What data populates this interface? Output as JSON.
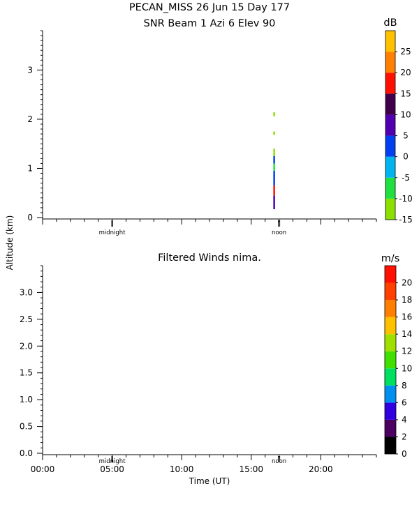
{
  "figure": {
    "title_line1": "PECAN_MISS  26 Jun 15 Day 177",
    "title_line2": "SNR Beam  1 Azi    6 Elev 90",
    "shared_ylabel": "Altitude (km)",
    "xlabel": "Time (UT)"
  },
  "chart_data": [
    {
      "type": "heatmap",
      "panel": "top",
      "title": "SNR Beam  1 Azi    6 Elev 90",
      "ylabel": "Altitude (km)",
      "ylim": [
        0,
        3.8
      ],
      "yticks": [
        0,
        1,
        2,
        3
      ],
      "xlim": [
        0,
        24
      ],
      "x_markers": [
        {
          "x": 5,
          "label": "midnight"
        },
        {
          "x": 17,
          "label": "noon"
        }
      ],
      "colorbar": {
        "unit": "dB",
        "min": -15,
        "max": 30,
        "ticks": [
          -15,
          -10,
          -5,
          0,
          5,
          10,
          15,
          20,
          25
        ],
        "colors": [
          "#8ce000",
          "#20e040",
          "#00b4f0",
          "#0040f0",
          "#5000b0",
          "#40004c",
          "#ff1000",
          "#ff8000",
          "#ffc000"
        ]
      },
      "data_cells": [
        {
          "time": 16.5,
          "alt_lo": 0.17,
          "alt_hi": 0.45,
          "db": 7
        },
        {
          "time": 16.5,
          "alt_lo": 0.45,
          "alt_hi": 0.65,
          "db": 17
        },
        {
          "time": 16.5,
          "alt_lo": 0.65,
          "alt_hi": 0.95,
          "db": 3
        },
        {
          "time": 16.5,
          "alt_lo": 0.95,
          "alt_hi": 1.1,
          "db": -6
        },
        {
          "time": 16.5,
          "alt_lo": 1.1,
          "alt_hi": 1.25,
          "db": 1
        },
        {
          "time": 16.5,
          "alt_lo": 1.25,
          "alt_hi": 1.4,
          "db": -12
        },
        {
          "time": 16.5,
          "alt_lo": 1.68,
          "alt_hi": 1.75,
          "db": -12
        },
        {
          "time": 16.5,
          "alt_lo": 2.06,
          "alt_hi": 2.14,
          "db": -13
        }
      ]
    },
    {
      "type": "heatmap",
      "panel": "bottom",
      "title": "Filtered Winds nima.",
      "ylabel": "Altitude (km)",
      "ylim": [
        0,
        3.5
      ],
      "yticks": [
        0.0,
        0.5,
        1.0,
        1.5,
        2.0,
        2.5,
        3.0
      ],
      "yticklabels": [
        "0.0",
        "0.5",
        "1.0",
        "1.5",
        "2.0",
        "2.5",
        "3.0"
      ],
      "xlim": [
        0,
        24
      ],
      "xticks": [
        0,
        5,
        10,
        15,
        20
      ],
      "xticklabels": [
        "00:00",
        "05:00",
        "10:00",
        "15:00",
        "20:00"
      ],
      "xlabel": "Time (UT)",
      "x_markers": [
        {
          "x": 5,
          "label": "midnight"
        },
        {
          "x": 17,
          "label": "noon"
        }
      ],
      "colorbar": {
        "unit": "m/s",
        "min": 0,
        "max": 22,
        "ticks": [
          0,
          2,
          4,
          6,
          8,
          10,
          12,
          14,
          16,
          18,
          20
        ],
        "colors": [
          "#000000",
          "#4c0060",
          "#3000e0",
          "#0090f0",
          "#00e060",
          "#40e000",
          "#a0e000",
          "#ffc000",
          "#ff8000",
          "#ff4000",
          "#ff1000"
        ]
      },
      "data_cells": []
    }
  ]
}
